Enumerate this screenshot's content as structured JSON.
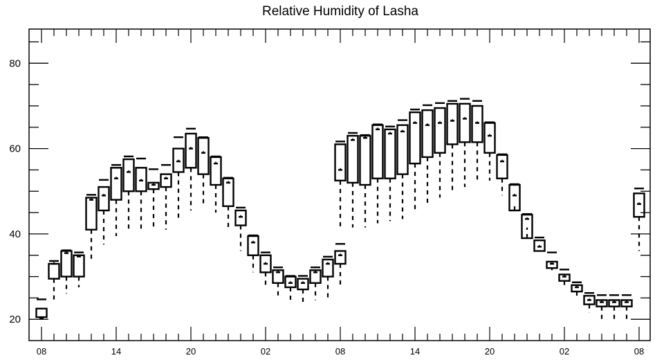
{
  "chart_data": {
    "type": "boxplot",
    "title": "Relative Humidity of Lasha",
    "xlabel": "",
    "ylabel": "",
    "ylim": [
      15,
      88
    ],
    "yticks": [
      20,
      40,
      60,
      80
    ],
    "xtick_labels": [
      "08",
      "14",
      "20",
      "02",
      "08",
      "14",
      "20",
      "02",
      "08"
    ],
    "grid": false,
    "series_a": {
      "x_start_hour": 8,
      "min": [
        20.0,
        24.0,
        26.0,
        27.5,
        33.5,
        37.5,
        39.5,
        41.0,
        41.0,
        41.0,
        41.0,
        43.5,
        45.5,
        46.5,
        45.0,
        41.0,
        36.0,
        31.0,
        27.5,
        25.5,
        24.5,
        24.0,
        24.5,
        25.0,
        27.5
      ],
      "q1": [
        20.5,
        29.5,
        30.0,
        30.0,
        41.0,
        45.5,
        48.0,
        50.0,
        50.0,
        50.5,
        51.0,
        54.5,
        55.5,
        54.0,
        51.5,
        46.5,
        42.0,
        35.0,
        31.0,
        28.5,
        27.5,
        27.0,
        28.5,
        30.0,
        33.0
      ],
      "median": [
        20.3,
        33.0,
        35.5,
        34.7,
        48.0,
        49.0,
        53.0,
        54.5,
        52.5,
        51.5,
        53.0,
        57.0,
        60.0,
        59.0,
        56.5,
        52.0,
        44.0,
        38.0,
        33.0,
        31.0,
        28.5,
        28.5,
        31.0,
        33.0,
        35.0
      ],
      "q3": [
        22.5,
        33.0,
        36.0,
        35.0,
        48.5,
        51.0,
        55.5,
        57.5,
        55.5,
        52.0,
        54.0,
        60.0,
        63.5,
        62.5,
        58.0,
        53.0,
        45.5,
        39.5,
        35.0,
        31.5,
        30.0,
        29.5,
        31.5,
        34.0,
        36.0
      ],
      "max": [
        24.5,
        33.5,
        36.0,
        35.5,
        49.0,
        52.5,
        56.0,
        58.0,
        57.5,
        55.0,
        56.0,
        62.5,
        64.5,
        62.5,
        58.0,
        53.0,
        46.0,
        39.5,
        35.5,
        32.0,
        30.0,
        30.0,
        32.0,
        34.5,
        37.5
      ]
    },
    "series_b": {
      "x_start_hour": 8,
      "min": [
        41.5,
        41.5,
        41.5,
        42.5,
        43.0,
        43.5,
        45.0,
        47.0,
        48.5,
        50.0,
        51.0,
        52.5,
        52.5,
        49.0,
        47.0,
        41.5,
        36.0,
        31.5,
        28.0,
        25.0,
        21.5,
        19.5,
        19.5,
        20.0
      ],
      "q1": [
        52.5,
        52.0,
        51.5,
        53.0,
        53.0,
        54.0,
        56.5,
        58.0,
        59.0,
        61.0,
        61.5,
        61.5,
        59.0,
        53.0,
        45.5,
        39.0,
        36.0,
        32.0,
        29.0,
        26.5,
        23.5,
        23.0,
        23.0,
        23.0
      ],
      "median": [
        55.0,
        62.0,
        62.5,
        64.5,
        63.5,
        64.0,
        66.0,
        65.5,
        66.0,
        66.5,
        67.0,
        66.0,
        63.0,
        57.0,
        49.0,
        43.5,
        37.0,
        33.0,
        30.0,
        27.5,
        24.5,
        24.0,
        24.0,
        24.0
      ],
      "q3": [
        61.0,
        63.0,
        63.0,
        65.5,
        64.5,
        65.5,
        68.5,
        69.0,
        69.5,
        70.5,
        70.5,
        70.0,
        66.0,
        58.5,
        51.5,
        44.5,
        38.5,
        33.5,
        30.5,
        28.0,
        25.5,
        24.5,
        24.5,
        24.5
      ],
      "max": [
        61.5,
        63.5,
        63.0,
        65.5,
        65.0,
        66.5,
        69.0,
        70.0,
        70.5,
        71.0,
        71.5,
        71.0,
        66.0,
        58.5,
        51.5,
        44.5,
        39.0,
        35.5,
        31.5,
        28.5,
        26.0,
        25.5,
        25.5,
        25.5
      ]
    },
    "series_c": {
      "x_hour": 8,
      "min": 36.0,
      "q1": 44.0,
      "median": 47.0,
      "q3": 49.5,
      "max": 50.5
    }
  }
}
